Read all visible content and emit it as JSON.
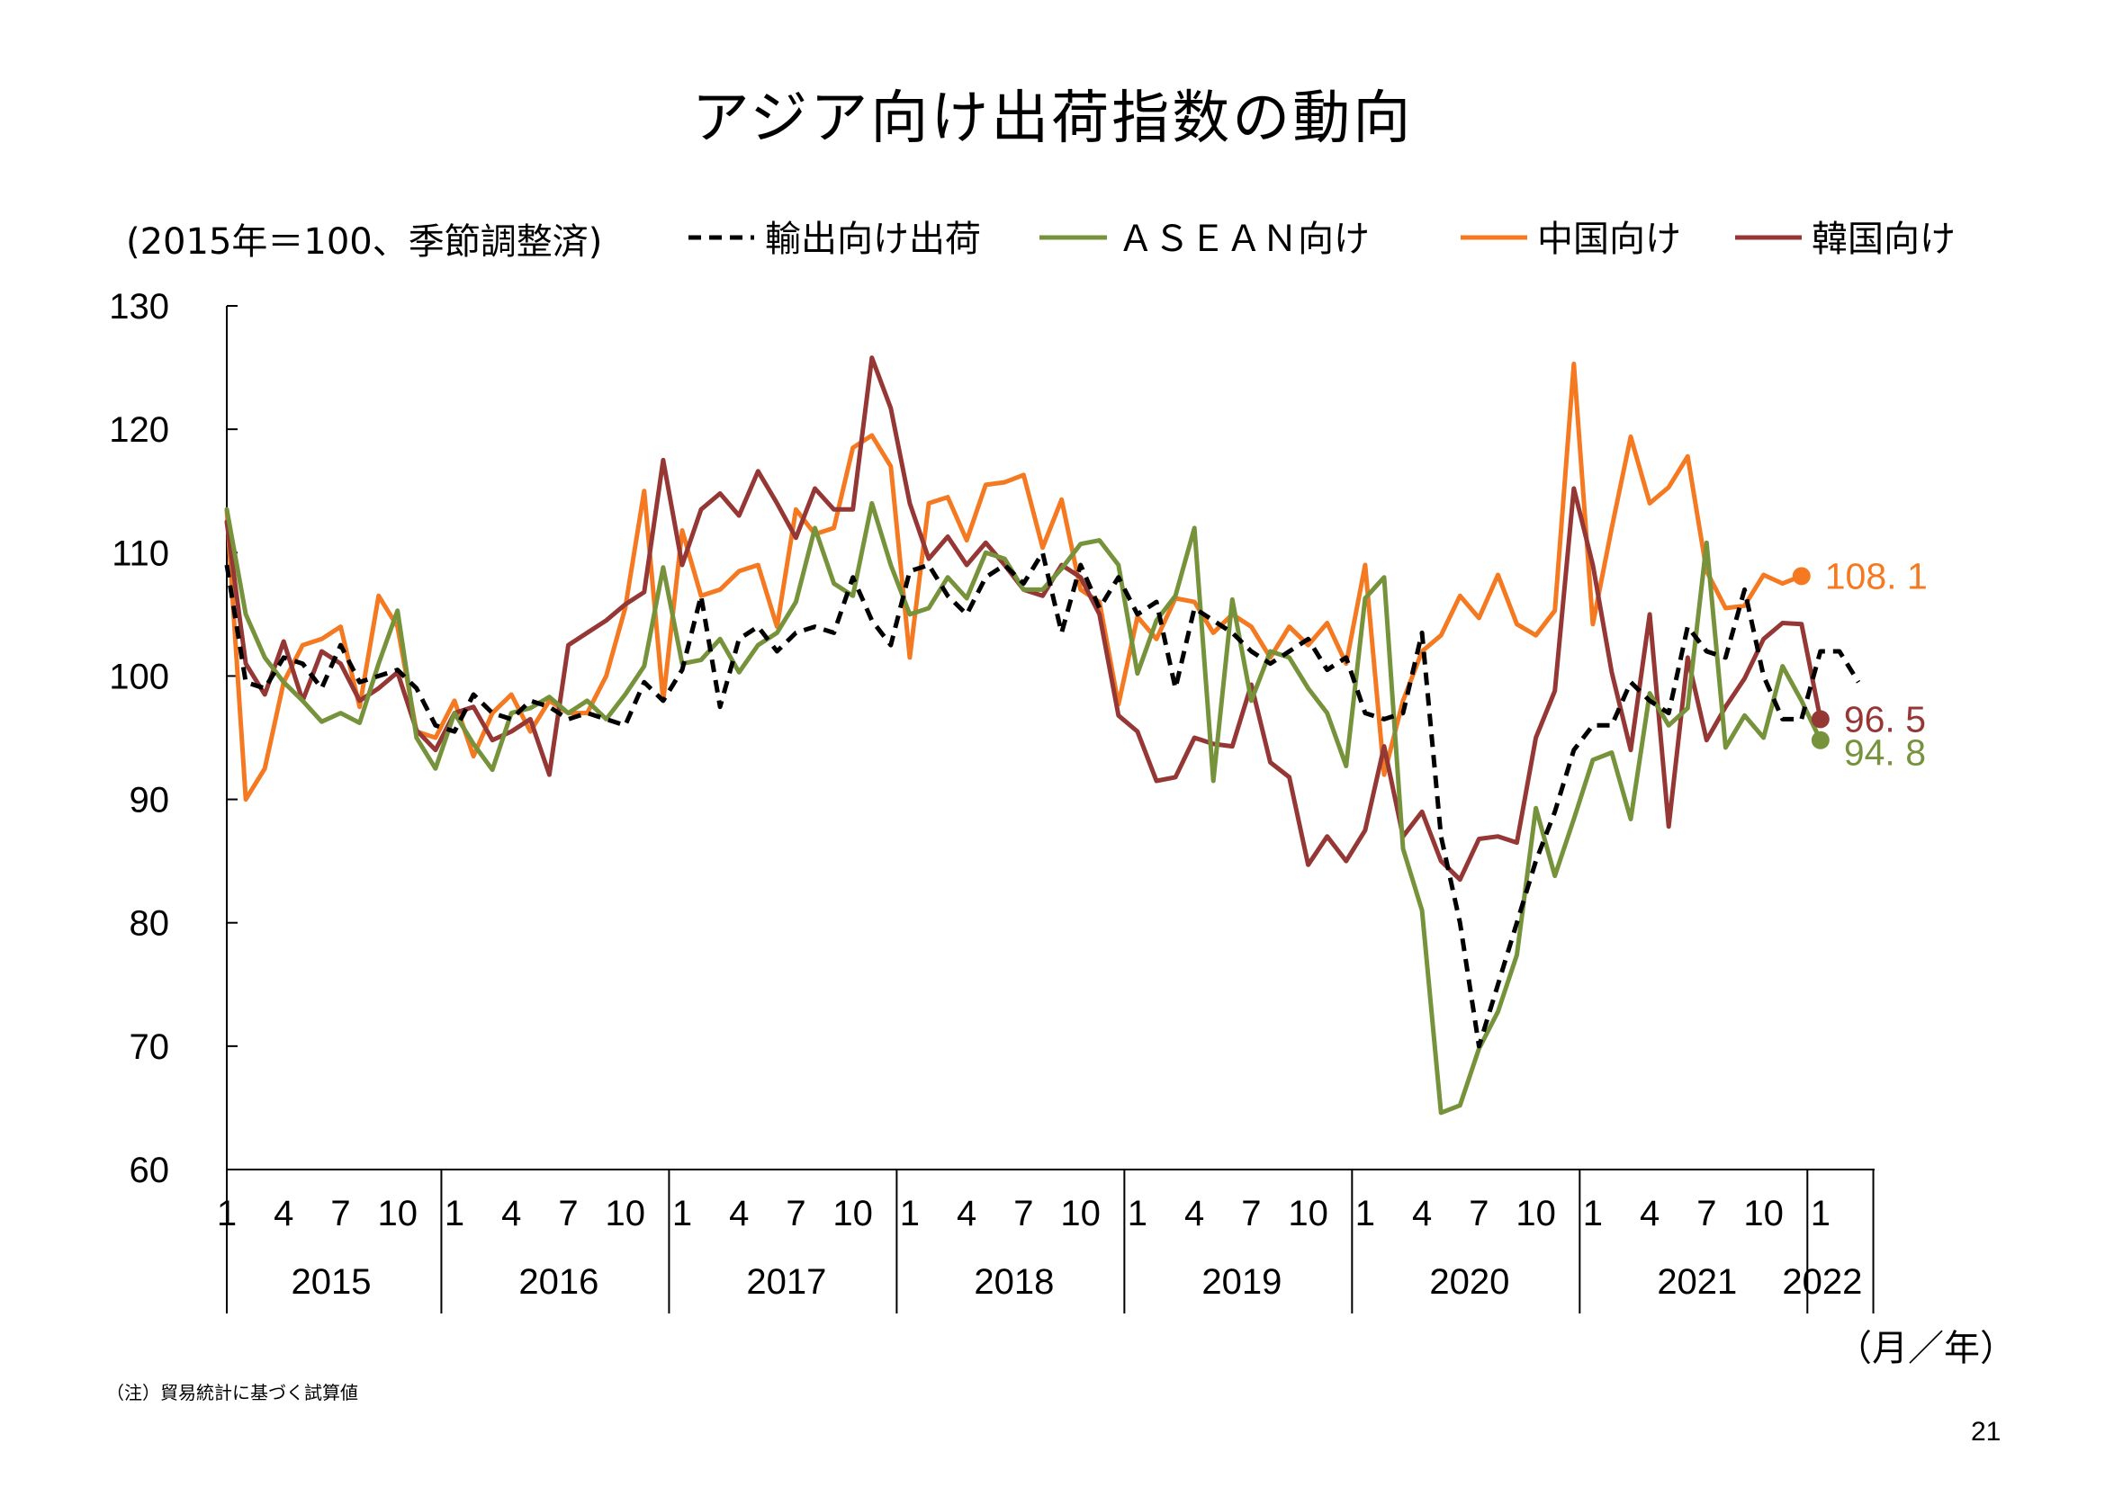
{
  "page": {
    "title": "アジア向け出荷指数の動向",
    "footnote": "（注）貿易統計に基づく試算値",
    "page_number": "21"
  },
  "chart_data": {
    "type": "line",
    "title": "アジア向け出荷指数の動向",
    "unit_note": "(2015年＝100、季節調整済)",
    "xlabel": "（月／年）",
    "ylabel": "",
    "ylim": [
      60,
      130
    ],
    "yticks": [
      60,
      70,
      80,
      90,
      100,
      110,
      120,
      130
    ],
    "month_ticks": [
      "1",
      "4",
      "7",
      "10"
    ],
    "years": [
      "2015",
      "2016",
      "2017",
      "2018",
      "2019",
      "2020",
      "2021",
      "2022"
    ],
    "x_start": "2015-01",
    "legend_position": "top",
    "grid": false,
    "series": [
      {
        "name": "輸出向け出荷",
        "color": "#000000",
        "style": "dashed",
        "values": [
          109.0,
          99.5,
          99.0,
          101.5,
          101.0,
          99.0,
          102.5,
          99.5,
          100.0,
          100.5,
          99.0,
          96.0,
          95.5,
          98.5,
          97.0,
          96.5,
          98.0,
          97.5,
          96.5,
          97.0,
          96.5,
          96.0,
          99.5,
          98.0,
          100.5,
          106.5,
          97.5,
          103.0,
          104.0,
          102.0,
          103.5,
          104.0,
          103.5,
          108.0,
          104.5,
          102.5,
          108.5,
          109.0,
          106.5,
          105.0,
          108.0,
          109.0,
          107.5,
          110.0,
          103.5,
          109.0,
          105.5,
          108.0,
          105.0,
          106.0,
          99.0,
          105.5,
          104.5,
          103.5,
          102.0,
          101.0,
          102.0,
          103.0,
          100.5,
          101.5,
          97.0,
          96.5,
          97.0,
          103.5,
          87.0,
          80.0,
          70.0,
          75.0,
          80.0,
          85.0,
          89.0,
          94.0,
          96.0,
          96.0,
          99.5,
          98.0,
          97.0,
          104.0,
          102.0,
          101.5,
          107.0,
          100.0,
          96.5,
          96.5,
          102.0,
          102.0,
          99.5
        ]
      },
      {
        "name": "ＡＳＥＡＮ向け",
        "color": "#76933C",
        "style": "solid",
        "values": [
          113.5,
          105.0,
          101.5,
          99.5,
          98.0,
          96.3,
          97.0,
          96.2,
          101.0,
          105.3,
          95.0,
          92.5,
          97.0,
          94.5,
          92.4,
          97.0,
          97.4,
          98.3,
          97.0,
          98.0,
          96.5,
          98.5,
          100.8,
          108.8,
          101.0,
          101.3,
          103.0,
          100.3,
          102.5,
          103.5,
          106.0,
          112.0,
          107.5,
          106.5,
          114.0,
          109.0,
          105.0,
          105.5,
          108.0,
          106.3,
          110.0,
          109.5,
          107.0,
          107.0,
          108.7,
          110.7,
          111.0,
          109.0,
          100.2,
          104.5,
          106.5,
          112.0,
          91.5,
          106.2,
          98.0,
          102.0,
          101.5,
          99.0,
          97.0,
          92.7,
          106.3,
          108.0,
          86.0,
          81.0,
          64.6,
          65.2,
          69.8,
          72.8,
          77.4,
          89.3,
          83.8,
          88.4,
          93.2,
          93.8,
          88.4,
          98.6,
          96.0,
          97.4,
          110.8,
          94.2,
          96.8,
          95.0,
          100.8,
          98.0,
          94.8
        ]
      },
      {
        "name": "中国向け",
        "color": "#F47920",
        "style": "solid",
        "values": [
          113.5,
          90.0,
          92.5,
          99.5,
          102.5,
          103.0,
          104.0,
          97.5,
          106.5,
          104.0,
          95.5,
          95.0,
          98.0,
          93.5,
          97.0,
          98.5,
          95.5,
          98.0,
          97.0,
          97.0,
          100.0,
          105.5,
          115.0,
          98.0,
          111.8,
          106.5,
          107.0,
          108.5,
          109.0,
          104.0,
          113.5,
          111.5,
          112.0,
          118.5,
          119.5,
          117.0,
          101.5,
          114.0,
          114.5,
          111.0,
          115.5,
          115.7,
          116.3,
          110.4,
          114.3,
          107.0,
          106.0,
          97.7,
          104.8,
          103.0,
          106.3,
          106.0,
          103.5,
          105.0,
          104.0,
          101.5,
          104.0,
          102.5,
          104.3,
          101.0,
          109.0,
          92.0,
          98.0,
          102.0,
          103.3,
          106.5,
          104.7,
          108.2,
          104.2,
          103.3,
          105.3,
          125.3,
          104.2,
          112.0,
          119.4,
          114.0,
          115.3,
          117.8,
          108.5,
          105.5,
          105.7,
          108.2,
          107.5,
          108.1
        ]
      },
      {
        "name": "韓国向け",
        "color": "#953735",
        "style": "solid",
        "values": [
          112.5,
          101.0,
          98.5,
          102.8,
          98.0,
          102.0,
          101.0,
          98.0,
          99.0,
          100.3,
          95.6,
          94.0,
          97.0,
          97.5,
          94.8,
          95.5,
          96.5,
          92.0,
          102.5,
          103.5,
          104.5,
          105.8,
          106.8,
          117.5,
          109.0,
          113.5,
          114.8,
          113.0,
          116.6,
          114.0,
          111.2,
          115.2,
          113.5,
          113.5,
          125.8,
          121.7,
          114.0,
          109.5,
          111.3,
          109.0,
          110.8,
          109.0,
          107.0,
          106.5,
          109.0,
          108.0,
          105.0,
          96.8,
          95.5,
          91.5,
          91.8,
          95.0,
          94.5,
          94.3,
          99.3,
          93.0,
          91.8,
          84.7,
          87.0,
          85.0,
          87.5,
          94.3,
          87.0,
          89.0,
          85.0,
          83.5,
          86.8,
          87.0,
          86.5,
          95.0,
          98.8,
          115.2,
          109.0,
          100.3,
          94.0,
          105.0,
          87.8,
          101.5,
          94.8,
          97.5,
          99.8,
          103.0,
          104.3,
          104.2,
          96.5
        ]
      }
    ],
    "end_labels": [
      {
        "series": "中国向け",
        "value": "108. 1",
        "color": "#F47920"
      },
      {
        "series": "韓国向け",
        "value": "96. 5",
        "color": "#953735"
      },
      {
        "series": "ＡＳＥＡＮ向け",
        "value": "94. 8",
        "color": "#76933C"
      }
    ]
  }
}
